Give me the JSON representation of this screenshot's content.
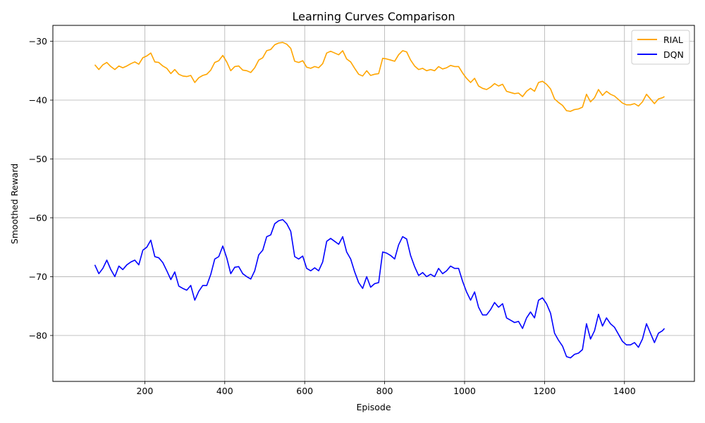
{
  "chart_data": {
    "type": "line",
    "title": "Learning Curves Comparison",
    "xlabel": "Episode",
    "ylabel": "Smoothed Reward",
    "xlim": [
      -30,
      1575
    ],
    "ylim": [
      -87.8,
      -27.3
    ],
    "x_ticks": [
      200,
      400,
      600,
      800,
      1000,
      1200,
      1400
    ],
    "x_tick_labels": [
      "200",
      "400",
      "600",
      "800",
      "1000",
      "1200",
      "1400"
    ],
    "y_ticks": [
      -30,
      -40,
      -50,
      -60,
      -70,
      -80
    ],
    "y_tick_labels": [
      "−30",
      "−40",
      "−50",
      "−60",
      "−70",
      "−80"
    ],
    "grid": true,
    "legend_position": "top-right",
    "x": [
      75,
      85,
      95,
      105,
      115,
      125,
      135,
      145,
      155,
      165,
      175,
      185,
      195,
      205,
      215,
      225,
      235,
      245,
      255,
      265,
      275,
      285,
      295,
      305,
      315,
      325,
      335,
      345,
      355,
      365,
      375,
      385,
      395,
      405,
      415,
      425,
      435,
      445,
      455,
      465,
      475,
      485,
      495,
      505,
      515,
      525,
      535,
      545,
      555,
      565,
      575,
      585,
      595,
      605,
      615,
      625,
      635,
      645,
      655,
      665,
      675,
      685,
      695,
      705,
      715,
      725,
      735,
      745,
      755,
      765,
      775,
      785,
      795,
      805,
      815,
      825,
      835,
      845,
      855,
      865,
      875,
      885,
      895,
      905,
      915,
      925,
      935,
      945,
      955,
      965,
      975,
      985,
      995,
      1005,
      1015,
      1025,
      1035,
      1045,
      1055,
      1065,
      1075,
      1085,
      1095,
      1105,
      1115,
      1125,
      1135,
      1145,
      1155,
      1165,
      1175,
      1185,
      1195,
      1205,
      1215,
      1225,
      1235,
      1245,
      1255,
      1265,
      1275,
      1285,
      1295,
      1305,
      1315,
      1325,
      1335,
      1345,
      1355,
      1365,
      1375,
      1385,
      1395,
      1405,
      1415,
      1425,
      1435,
      1445,
      1455,
      1465,
      1475,
      1485,
      1495,
      1500
    ],
    "series": [
      {
        "name": "RIAL",
        "color": "#ffa500",
        "values": [
          -34.0,
          -34.8,
          -34.0,
          -33.6,
          -34.3,
          -34.8,
          -34.2,
          -34.5,
          -34.2,
          -33.8,
          -33.5,
          -33.9,
          -32.8,
          -32.5,
          -32.0,
          -33.5,
          -33.6,
          -34.2,
          -34.6,
          -35.5,
          -34.8,
          -35.6,
          -35.9,
          -36.0,
          -35.8,
          -37.0,
          -36.2,
          -35.8,
          -35.6,
          -34.9,
          -33.6,
          -33.3,
          -32.4,
          -33.5,
          -35.0,
          -34.3,
          -34.2,
          -34.9,
          -35.0,
          -35.3,
          -34.5,
          -33.2,
          -32.8,
          -31.6,
          -31.4,
          -30.6,
          -30.3,
          -30.2,
          -30.5,
          -31.2,
          -33.4,
          -33.6,
          -33.3,
          -34.4,
          -34.6,
          -34.3,
          -34.5,
          -33.8,
          -32.0,
          -31.7,
          -32.0,
          -32.3,
          -31.6,
          -33.0,
          -33.5,
          -34.6,
          -35.6,
          -35.9,
          -35.0,
          -35.8,
          -35.6,
          -35.5,
          -32.9,
          -33.0,
          -33.2,
          -33.4,
          -32.3,
          -31.6,
          -31.8,
          -33.2,
          -34.2,
          -34.8,
          -34.6,
          -35.0,
          -34.8,
          -35.0,
          -34.3,
          -34.7,
          -34.5,
          -34.1,
          -34.3,
          -34.3,
          -35.4,
          -36.3,
          -37.0,
          -36.3,
          -37.6,
          -38.0,
          -38.2,
          -37.8,
          -37.2,
          -37.6,
          -37.3,
          -38.5,
          -38.7,
          -38.9,
          -38.8,
          -39.4,
          -38.5,
          -38.0,
          -38.5,
          -37.0,
          -36.8,
          -37.3,
          -38.1,
          -39.8,
          -40.4,
          -40.9,
          -41.8,
          -41.9,
          -41.6,
          -41.5,
          -41.2,
          -39.0,
          -40.3,
          -39.6,
          -38.2,
          -39.2,
          -38.5,
          -39.0,
          -39.3,
          -39.9,
          -40.5,
          -40.8,
          -40.8,
          -40.6,
          -41.0,
          -40.3,
          -39.0,
          -39.8,
          -40.6,
          -39.8,
          -39.6,
          -39.4
        ]
      },
      {
        "name": "DQN",
        "color": "#0000ff",
        "values": [
          -68.0,
          -69.5,
          -68.6,
          -67.2,
          -68.8,
          -70.0,
          -68.2,
          -68.8,
          -68.0,
          -67.5,
          -67.2,
          -68.0,
          -65.5,
          -65.0,
          -63.8,
          -66.6,
          -66.8,
          -67.6,
          -69.0,
          -70.5,
          -69.2,
          -71.6,
          -72.0,
          -72.3,
          -71.5,
          -74.0,
          -72.5,
          -71.5,
          -71.5,
          -69.6,
          -67.0,
          -66.6,
          -64.8,
          -66.8,
          -69.5,
          -68.4,
          -68.3,
          -69.5,
          -70.0,
          -70.4,
          -69.0,
          -66.3,
          -65.5,
          -63.2,
          -62.9,
          -61.0,
          -60.5,
          -60.3,
          -61.0,
          -62.3,
          -66.6,
          -67.0,
          -66.5,
          -68.6,
          -69.0,
          -68.5,
          -69.0,
          -67.5,
          -64.0,
          -63.5,
          -64.0,
          -64.5,
          -63.2,
          -65.8,
          -67.0,
          -69.2,
          -71.0,
          -72.0,
          -70.0,
          -71.8,
          -71.2,
          -71.0,
          -65.8,
          -66.0,
          -66.4,
          -67.0,
          -64.6,
          -63.2,
          -63.6,
          -66.4,
          -68.3,
          -69.8,
          -69.3,
          -70.0,
          -69.6,
          -70.0,
          -68.6,
          -69.5,
          -69.0,
          -68.2,
          -68.6,
          -68.6,
          -70.8,
          -72.6,
          -74.0,
          -72.6,
          -75.2,
          -76.5,
          -76.5,
          -75.6,
          -74.4,
          -75.2,
          -74.6,
          -77.0,
          -77.4,
          -77.8,
          -77.6,
          -78.8,
          -77.0,
          -76.0,
          -77.0,
          -74.0,
          -73.6,
          -74.6,
          -76.2,
          -79.6,
          -80.8,
          -81.8,
          -83.6,
          -83.8,
          -83.2,
          -83.0,
          -82.4,
          -78.0,
          -80.6,
          -79.2,
          -76.4,
          -78.4,
          -77.0,
          -78.0,
          -78.6,
          -79.8,
          -81.0,
          -81.6,
          -81.6,
          -81.2,
          -82.0,
          -80.6,
          -78.0,
          -79.6,
          -81.2,
          -79.6,
          -79.2,
          -78.8
        ]
      }
    ]
  }
}
